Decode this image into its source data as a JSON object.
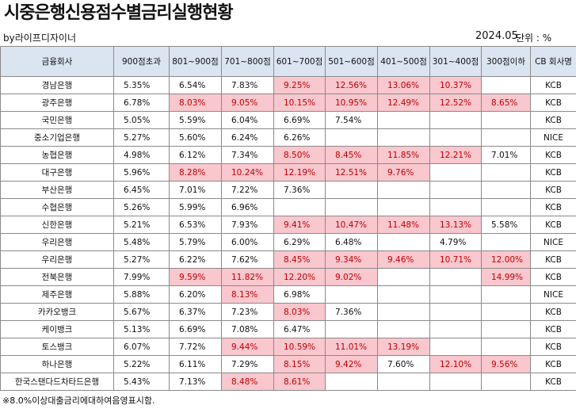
{
  "title": "시중은행신용점수별금리실행현황",
  "byline": "by라이프디자이너",
  "date": "2024.05.",
  "unit": "단위 : %",
  "colors": {
    "header_bg": "#dbe5f1",
    "highlight_bg": "#f9c7ce",
    "highlight_text": "#c00000"
  },
  "columns": [
    "금융회사",
    "900점초과",
    "801~900점",
    "701~800점",
    "601~700점",
    "501~600점",
    "401~500점",
    "301~400점",
    "300점이하",
    "CB 회사명"
  ],
  "rows": [
    {
      "cells": [
        "경남은행",
        "5.35%",
        "6.54%",
        "7.83%",
        "9.25%",
        "12.56%",
        "13.06%",
        "10.37%",
        "",
        "KCB"
      ],
      "hl": [
        4,
        5,
        6,
        7
      ]
    },
    {
      "cells": [
        "광주은행",
        "6.78%",
        "8.03%",
        "9.05%",
        "10.15%",
        "10.95%",
        "12.49%",
        "12.52%",
        "8.65%",
        "KCB"
      ],
      "hl": [
        2,
        3,
        4,
        5,
        6,
        7,
        8
      ]
    },
    {
      "cells": [
        "국민은행",
        "5.05%",
        "5.59%",
        "6.04%",
        "6.69%",
        "7.54%",
        "",
        "",
        "",
        "KCB"
      ],
      "hl": []
    },
    {
      "cells": [
        "중소기업은행",
        "5.27%",
        "5.60%",
        "6.24%",
        "6.26%",
        "",
        "",
        "",
        "",
        "NICE"
      ],
      "hl": []
    },
    {
      "cells": [
        "농협은행",
        "4.98%",
        "6.12%",
        "7.34%",
        "8.50%",
        "8.45%",
        "11.85%",
        "12.21%",
        "7.01%",
        "KCB"
      ],
      "hl": [
        4,
        5,
        6,
        7
      ]
    },
    {
      "cells": [
        "대구은행",
        "5.96%",
        "8.28%",
        "10.24%",
        "12.19%",
        "12.51%",
        "9.76%",
        "",
        "",
        "KCB"
      ],
      "hl": [
        2,
        3,
        4,
        5,
        6
      ]
    },
    {
      "cells": [
        "부산은행",
        "6.45%",
        "7.01%",
        "7.22%",
        "7.36%",
        "",
        "",
        "",
        "",
        "KCB"
      ],
      "hl": []
    },
    {
      "cells": [
        "수협은행",
        "5.26%",
        "5.99%",
        "6.96%",
        "",
        "",
        "",
        "",
        "",
        "KCB"
      ],
      "hl": []
    },
    {
      "cells": [
        "신한은행",
        "5.21%",
        "6.53%",
        "7.93%",
        "9.41%",
        "10.47%",
        "11.48%",
        "13.13%",
        "5.58%",
        "KCB"
      ],
      "hl": [
        4,
        5,
        6,
        7
      ]
    },
    {
      "cells": [
        "우리은행",
        "5.48%",
        "5.79%",
        "6.00%",
        "6.29%",
        "6.48%",
        "",
        "4.79%",
        "",
        "NICE"
      ],
      "hl": []
    },
    {
      "cells": [
        "우리은행",
        "5.27%",
        "6.22%",
        "7.62%",
        "8.45%",
        "9.34%",
        "9.46%",
        "10.71%",
        "12.00%",
        "KCB"
      ],
      "hl": [
        4,
        5,
        6,
        7,
        8
      ]
    },
    {
      "cells": [
        "전북은행",
        "7.99%",
        "9.59%",
        "11.82%",
        "12.20%",
        "9.02%",
        "",
        "",
        "14.99%",
        "KCB"
      ],
      "hl": [
        2,
        3,
        4,
        5,
        8
      ]
    },
    {
      "cells": [
        "제주은행",
        "5.88%",
        "6.20%",
        "8.13%",
        "6.98%",
        "",
        "",
        "",
        "",
        "NICE"
      ],
      "hl": [
        3
      ]
    },
    {
      "cells": [
        "카카오뱅크",
        "5.67%",
        "6.37%",
        "7.23%",
        "8.03%",
        "7.36%",
        "",
        "",
        "",
        "KCB"
      ],
      "hl": [
        4
      ]
    },
    {
      "cells": [
        "케이뱅크",
        "5.13%",
        "6.69%",
        "7.08%",
        "6.47%",
        "",
        "",
        "",
        "",
        "KCB"
      ],
      "hl": []
    },
    {
      "cells": [
        "토스뱅크",
        "6.07%",
        "7.72%",
        "9.44%",
        "10.59%",
        "11.01%",
        "13.19%",
        "",
        "",
        "KCB"
      ],
      "hl": [
        3,
        4,
        5,
        6
      ]
    },
    {
      "cells": [
        "하나은행",
        "5.22%",
        "6.11%",
        "7.29%",
        "8.15%",
        "9.42%",
        "7.60%",
        "12.10%",
        "9.56%",
        "KCB"
      ],
      "hl": [
        4,
        5,
        7,
        8
      ]
    },
    {
      "cells": [
        "한국스탠다드차타드은행",
        "5.43%",
        "7.13%",
        "8.48%",
        "8.61%",
        "",
        "",
        "",
        "",
        "KCB"
      ],
      "hl": [
        3,
        4
      ]
    }
  ],
  "footnote": "※8.0%이상대출금리에대하여음영표시함."
}
